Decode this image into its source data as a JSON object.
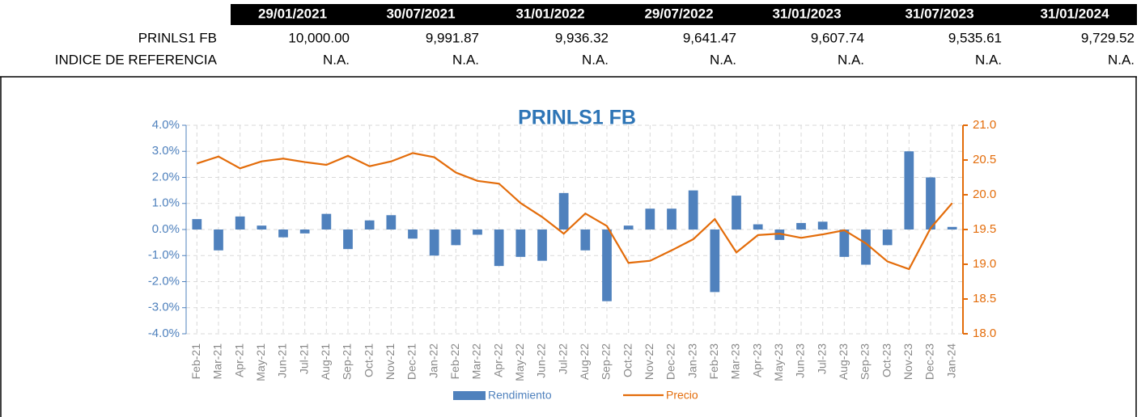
{
  "table": {
    "header": [
      "29/01/2021",
      "30/07/2021",
      "31/01/2022",
      "29/07/2022",
      "31/01/2023",
      "31/07/2023",
      "31/01/2024"
    ],
    "rows": [
      {
        "label": "PRINLS1 FB",
        "values": [
          "10,000.00",
          "9,991.87",
          "9,936.32",
          "9,641.47",
          "9,607.74",
          "9,535.61",
          "9,729.52"
        ]
      },
      {
        "label": "INDICE DE REFERENCIA",
        "values": [
          "N.A.",
          "N.A.",
          "N.A.",
          "N.A.",
          "N.A.",
          "N.A.",
          "N.A."
        ]
      }
    ]
  },
  "chart_data": {
    "type": "bar-line",
    "title": "PRINLS1 FB",
    "categories": [
      "Feb-21",
      "Mar-21",
      "Apr-21",
      "May-21",
      "Jun-21",
      "Jul-21",
      "Aug-21",
      "Sep-21",
      "Oct-21",
      "Nov-21",
      "Dec-21",
      "Jan-22",
      "Feb-22",
      "Mar-22",
      "Apr-22",
      "May-22",
      "Jun-22",
      "Jul-22",
      "Aug-22",
      "Sep-22",
      "Oct-22",
      "Nov-22",
      "Dec-22",
      "Jan-23",
      "Feb-23",
      "Mar-23",
      "Apr-23",
      "May-23",
      "Jun-23",
      "Jul-23",
      "Aug-23",
      "Sep-23",
      "Oct-23",
      "Nov-23",
      "Dec-23",
      "Jan-24"
    ],
    "series": [
      {
        "name": "Rendimiento",
        "type": "bar",
        "color": "#4f81bd",
        "values": [
          0.4,
          -0.8,
          0.5,
          0.15,
          -0.3,
          -0.15,
          0.6,
          -0.75,
          0.35,
          0.55,
          -0.35,
          -1.0,
          -0.6,
          -0.2,
          -1.4,
          -1.05,
          -1.2,
          1.4,
          -0.8,
          -2.75,
          0.15,
          0.8,
          0.8,
          1.5,
          -2.4,
          1.3,
          0.2,
          -0.4,
          0.25,
          0.3,
          -1.05,
          -1.35,
          -0.6,
          3.0,
          2.0,
          0.1
        ]
      },
      {
        "name": "Precio",
        "type": "line",
        "axis": "y2",
        "color": "#e36c0a",
        "values": [
          20.45,
          20.55,
          20.38,
          20.48,
          20.52,
          20.47,
          20.43,
          20.56,
          20.41,
          20.48,
          20.6,
          20.54,
          20.32,
          20.2,
          20.16,
          19.88,
          19.68,
          19.44,
          19.73,
          19.55,
          19.02,
          19.05,
          19.2,
          19.36,
          19.65,
          19.17,
          19.42,
          19.44,
          19.38,
          19.43,
          19.49,
          19.3,
          19.04,
          18.93,
          19.52,
          19.88
        ]
      }
    ],
    "ylim": [
      -4,
      4
    ],
    "yticks": [
      {
        "value": 4,
        "label": "4.0%"
      },
      {
        "value": 3,
        "label": "3.0%"
      },
      {
        "value": 2,
        "label": "2.0%"
      },
      {
        "value": 1,
        "label": "1.0%"
      },
      {
        "value": 0,
        "label": "0.0%"
      },
      {
        "value": -1,
        "label": "-1.0%"
      },
      {
        "value": -2,
        "label": "-2.0%"
      },
      {
        "value": -3,
        "label": "-3.0%"
      },
      {
        "value": -4,
        "label": "-4.0%"
      }
    ],
    "y2lim": [
      18,
      21
    ],
    "y2ticks": [
      {
        "value": 21,
        "label": "21.0"
      },
      {
        "value": 20.5,
        "label": "20.5"
      },
      {
        "value": 20,
        "label": "20.0"
      },
      {
        "value": 19.5,
        "label": "19.5"
      },
      {
        "value": 19,
        "label": "19.0"
      },
      {
        "value": 18.5,
        "label": "18.5"
      },
      {
        "value": 18,
        "label": "18.0"
      }
    ],
    "grid": true,
    "legend": "bottom"
  }
}
